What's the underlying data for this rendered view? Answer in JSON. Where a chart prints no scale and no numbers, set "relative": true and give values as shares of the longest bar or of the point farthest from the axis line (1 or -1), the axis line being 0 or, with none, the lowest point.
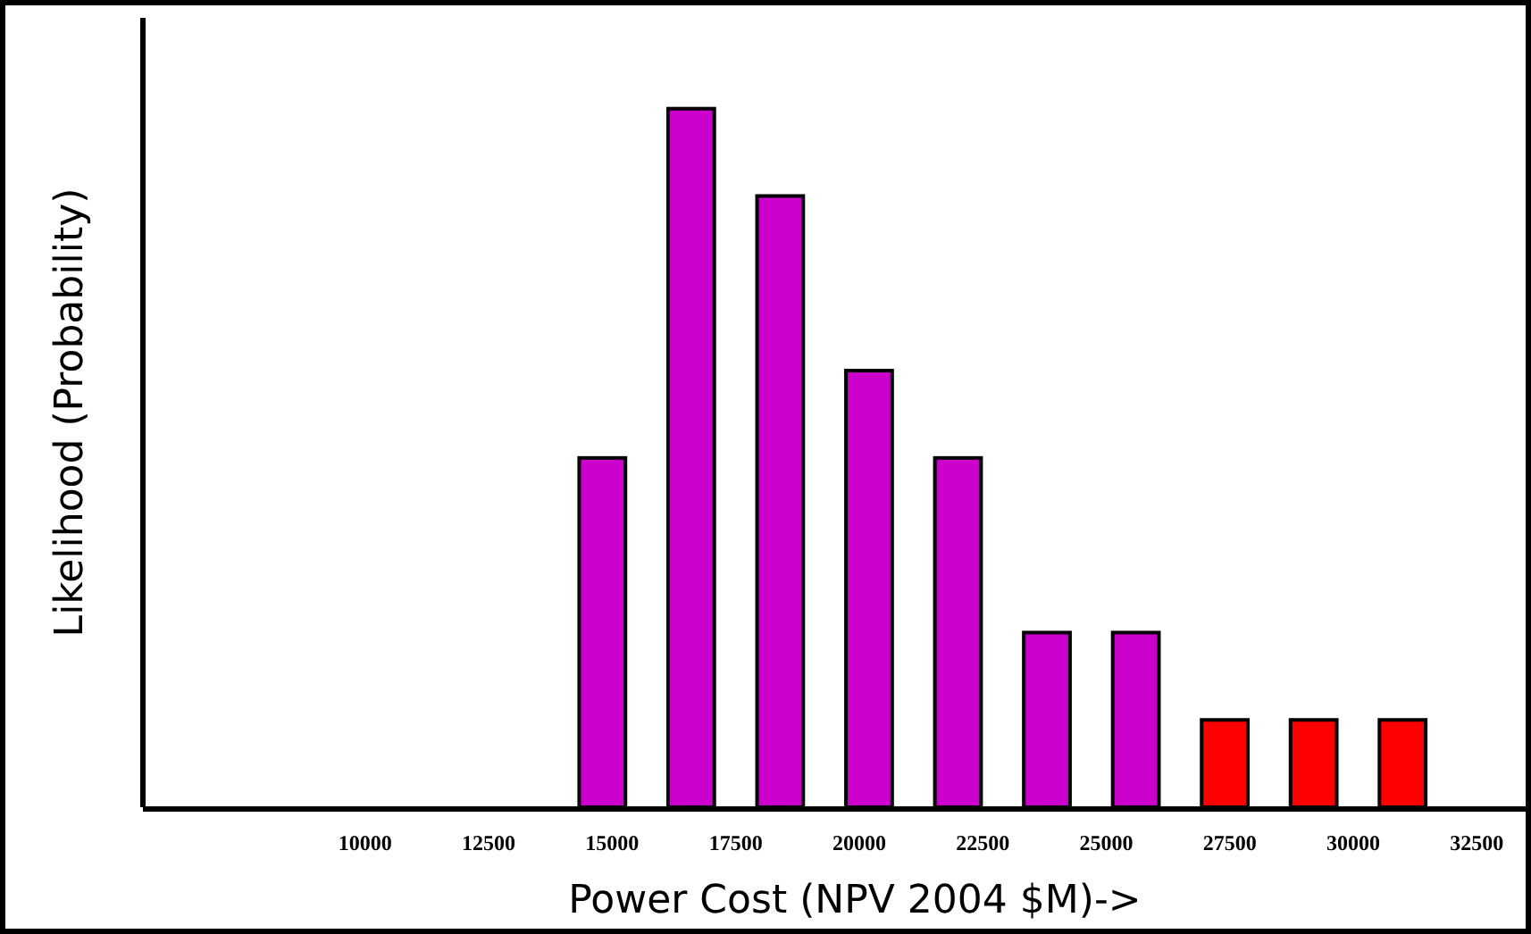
{
  "chart_data": {
    "type": "bar",
    "xlabel": "Power Cost (NPV 2004 $M)->",
    "ylabel": "Likelihood (Probability)",
    "relative": true,
    "x": [
      14800,
      16600,
      18400,
      20200,
      22000,
      23800,
      25600,
      27400,
      29200,
      31000
    ],
    "values": [
      0.5,
      1,
      0.875,
      0.625,
      0.5,
      0.25,
      0.25,
      0.125,
      0.125,
      0.125
    ],
    "colors": [
      "#cc00cc",
      "#cc00cc",
      "#cc00cc",
      "#cc00cc",
      "#cc00cc",
      "#cc00cc",
      "#cc00cc",
      "#ff0000",
      "#ff0000",
      "#ff0000"
    ],
    "xlim": [
      5500,
      33600
    ],
    "xticks": [
      10000,
      12500,
      15000,
      17500,
      20000,
      22500,
      25000,
      27500,
      30000,
      32500
    ],
    "grid": false
  }
}
